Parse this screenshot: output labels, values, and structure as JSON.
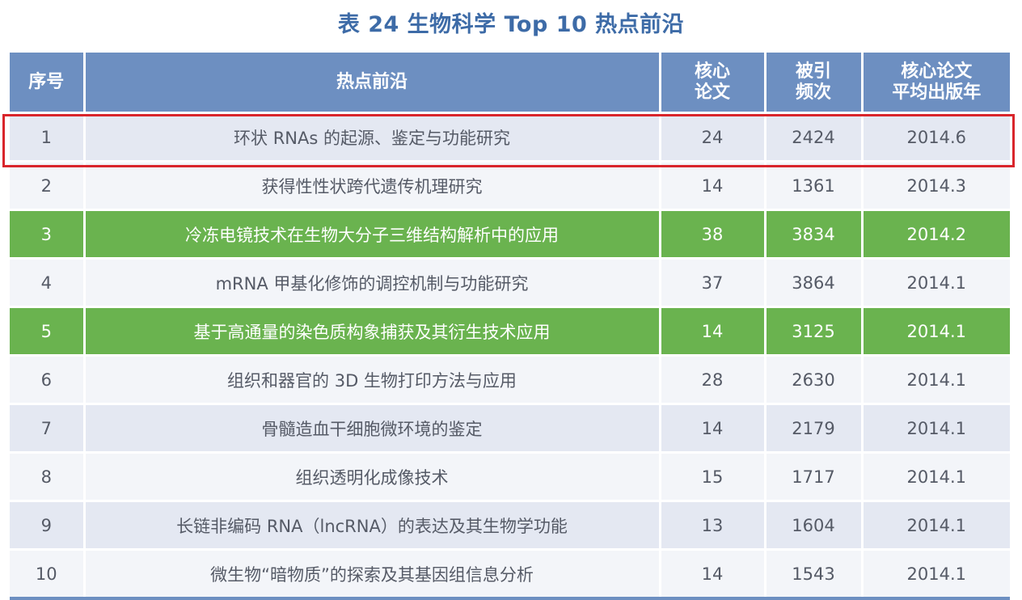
{
  "title": "表 24 生物科学 Top 10 热点前沿",
  "header": {
    "col1": "序号",
    "col2": "热点前沿",
    "col3_line1": "核心",
    "col3_line2": "论文",
    "col4_line1": "被引",
    "col4_line2": "频次",
    "col5_line1": "核心论文",
    "col5_line2": "平均出版年"
  },
  "highlight_color": "#6ab34f",
  "box_color": "#d9252b",
  "rows": [
    {
      "no": "1",
      "topic": "环状 RNAs 的起源、鉴定与功能研究",
      "papers": "24",
      "citations": "2424",
      "year": "2014.6"
    },
    {
      "no": "2",
      "topic": "获得性性状跨代遗传机理研究",
      "papers": "14",
      "citations": "1361",
      "year": "2014.3"
    },
    {
      "no": "3",
      "topic": "冷冻电镜技术在生物大分子三维结构解析中的应用",
      "papers": "38",
      "citations": "3834",
      "year": "2014.2"
    },
    {
      "no": "4",
      "topic": "mRNA 甲基化修饰的调控机制与功能研究",
      "papers": "37",
      "citations": "3864",
      "year": "2014.1"
    },
    {
      "no": "5",
      "topic": "基于高通量的染色质构象捕获及其衍生技术应用",
      "papers": "14",
      "citations": "3125",
      "year": "2014.1"
    },
    {
      "no": "6",
      "topic": "组织和器官的 3D 生物打印方法与应用",
      "papers": "28",
      "citations": "2630",
      "year": "2014.1"
    },
    {
      "no": "7",
      "topic": "骨髓造血干细胞微环境的鉴定",
      "papers": "14",
      "citations": "2179",
      "year": "2014.1"
    },
    {
      "no": "8",
      "topic": "组织透明化成像技术",
      "papers": "15",
      "citations": "1717",
      "year": "2014.1"
    },
    {
      "no": "9",
      "topic": "长链非编码 RNA（lncRNA）的表达及其生物学功能",
      "papers": "13",
      "citations": "1604",
      "year": "2014.1"
    },
    {
      "no": "10",
      "topic": "微生物“暗物质”的探索及其基因组信息分析",
      "papers": "14",
      "citations": "1543",
      "year": "2014.1"
    }
  ]
}
